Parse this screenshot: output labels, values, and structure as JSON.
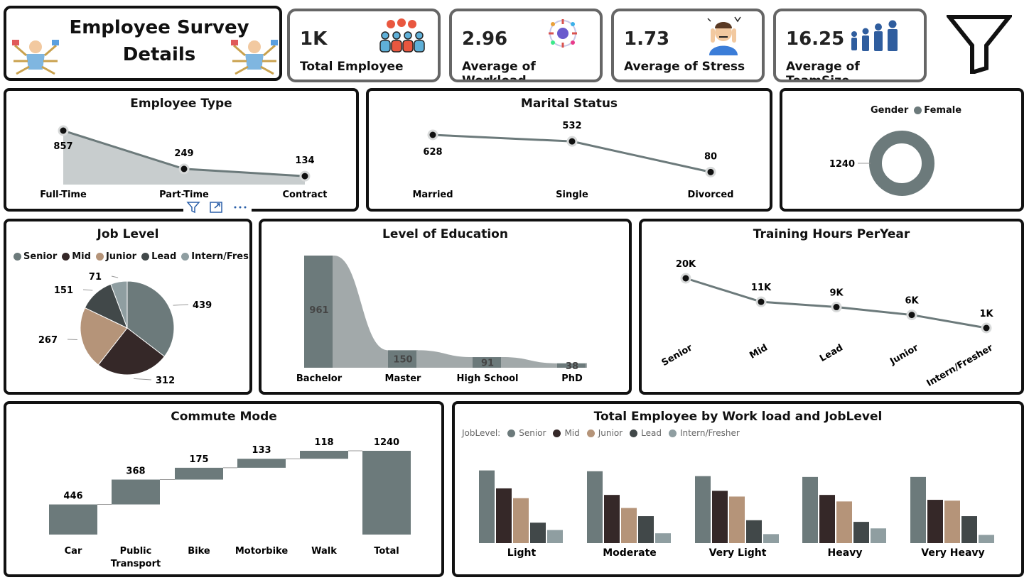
{
  "header": {
    "title_line1": "Employee Survey",
    "title_line2": "Details"
  },
  "kpis": [
    {
      "value": "1K",
      "label": "Total Employee",
      "icon": "people-group-icon"
    },
    {
      "value": "2.96",
      "label": "Average of Workload",
      "icon": "workload-icon"
    },
    {
      "value": "1.73",
      "label": "Average of Stress",
      "icon": "stressed-person-icon"
    },
    {
      "value": "16.25",
      "label": "Average of TeamSize",
      "icon": "team-size-icon"
    }
  ],
  "filter_icon": "funnel-icon",
  "colors": {
    "senior": "#6c7a7b",
    "mid": "#352828",
    "junior": "#b59479",
    "lead": "#414849",
    "intern": "#8f9ea1",
    "line": "#6c7a7b",
    "area": "#c8cdce",
    "panel_border": "#111111",
    "kpi_border": "#666666"
  },
  "panels": {
    "employee_type": "Employee Type",
    "marital": "Marital Status",
    "job_level": "Job Level",
    "education": "Level of Education",
    "training": "Training Hours PerYear",
    "commute": "Commute Mode",
    "workload": "Total Employee by Work load and JobLevel"
  },
  "gender_legend": {
    "title": "Gender",
    "item": "Female"
  },
  "joblevel_legend": [
    "Senior",
    "Mid",
    "Junior",
    "Lead",
    "Intern/Fresher"
  ],
  "workload_legend": {
    "title": "JobLevel:",
    "items": [
      "Senior",
      "Mid",
      "Junior",
      "Lead",
      "Intern/Fresher"
    ]
  },
  "chart_data": [
    {
      "id": "employee_type",
      "type": "area",
      "categories": [
        "Full-Time",
        "Part-Time",
        "Contract"
      ],
      "values": [
        857,
        249,
        134
      ],
      "labels": [
        "857",
        "249",
        "134"
      ]
    },
    {
      "id": "marital",
      "type": "line",
      "categories": [
        "Married",
        "Single",
        "Divorced"
      ],
      "values": [
        628,
        532,
        80
      ],
      "labels": [
        "628",
        "532",
        "80"
      ]
    },
    {
      "id": "gender",
      "type": "pie",
      "categories": [
        "Female"
      ],
      "values": [
        1240
      ],
      "labels": [
        "1240"
      ]
    },
    {
      "id": "job_level",
      "type": "pie",
      "categories": [
        "Senior",
        "Mid",
        "Junior",
        "Lead",
        "Intern/Fresher"
      ],
      "values": [
        439,
        312,
        267,
        151,
        71
      ],
      "labels": [
        "439",
        "312",
        "267",
        "151",
        "71"
      ]
    },
    {
      "id": "education",
      "type": "bar",
      "categories": [
        "Bachelor",
        "Master",
        "High School",
        "PhD"
      ],
      "values": [
        961,
        150,
        91,
        38
      ],
      "labels": [
        "961",
        "150",
        "91",
        "38"
      ]
    },
    {
      "id": "training",
      "type": "line",
      "categories": [
        "Senior",
        "Mid",
        "Lead",
        "Junior",
        "Intern/Fresher"
      ],
      "values": [
        20000,
        11000,
        9000,
        6000,
        1000
      ],
      "labels": [
        "20K",
        "11K",
        "9K",
        "6K",
        "1K"
      ]
    },
    {
      "id": "commute",
      "type": "bar",
      "subtype": "waterfall",
      "categories": [
        "Car",
        "Public Transport",
        "Bike",
        "Motorbike",
        "Walk",
        "Total"
      ],
      "values": [
        446,
        368,
        175,
        133,
        118,
        1240
      ],
      "labels": [
        "446",
        "368",
        "175",
        "133",
        "118",
        "1240"
      ]
    },
    {
      "id": "workload",
      "type": "bar",
      "categories": [
        "Light",
        "Moderate",
        "Very Light",
        "Heavy",
        "Very Heavy"
      ],
      "series": [
        {
          "name": "Senior",
          "values": [
            89,
            88,
            82,
            81,
            81
          ]
        },
        {
          "name": "Mid",
          "values": [
            67,
            59,
            64,
            59,
            53
          ]
        },
        {
          "name": "Junior",
          "values": [
            55,
            43,
            57,
            51,
            52
          ]
        },
        {
          "name": "Lead",
          "values": [
            25,
            33,
            28,
            26,
            33
          ]
        },
        {
          "name": "Intern/Fresher",
          "values": [
            16,
            12,
            11,
            18,
            10
          ]
        }
      ]
    }
  ]
}
